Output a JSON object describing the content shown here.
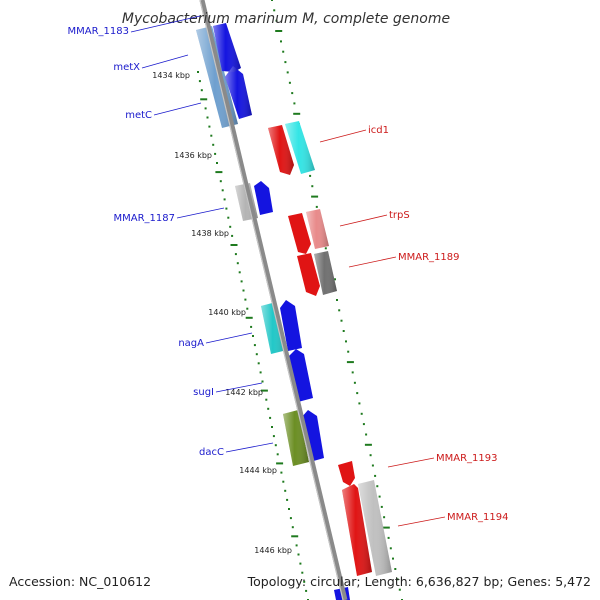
{
  "title": "Mycobacterium marinum M, complete genome",
  "footer": {
    "accession": "Accession: NC_010612",
    "topology": "Topology: circular; Length: 6,636,827 bp; Genes: 5,472"
  },
  "colors": {
    "backbone": "#8a8a8a",
    "tick_mark": "#1e7a1e",
    "forward_label": "#1a1acc",
    "reverse_label": "#cc1a1a"
  },
  "tick_labels": [
    "1434 kbp",
    "1436 kbp",
    "1438 kbp",
    "1440 kbp",
    "1442 kbp",
    "1444 kbp",
    "1446 kbp"
  ],
  "genes": [
    {
      "label": "MMAR_1183",
      "strand": "forward",
      "color": "#4f7fb0"
    },
    {
      "label": "metX",
      "strand": "forward",
      "color": "#1414e0"
    },
    {
      "label": "metC",
      "strand": "forward",
      "color": "#1414e0"
    },
    {
      "label": "icd1",
      "strand": "reverse",
      "color": "#e01414"
    },
    {
      "label": "MMAR_1187",
      "strand": "forward",
      "color": "#1414e0"
    },
    {
      "label": "trpS",
      "strand": "reverse",
      "color": "#e07b7b"
    },
    {
      "label": "MMAR_1189",
      "strand": "reverse",
      "color": "#6e6e6e"
    },
    {
      "label": "nagA",
      "strand": "forward",
      "color": "#1414e0"
    },
    {
      "label": "sugI",
      "strand": "forward",
      "color": "#1414e0"
    },
    {
      "label": "dacC",
      "strand": "forward",
      "color": "#1414e0"
    },
    {
      "label": "MMAR_1193",
      "strand": "reverse",
      "color": "#e01414"
    },
    {
      "label": "MMAR_1194",
      "strand": "reverse",
      "color": "#e01414"
    }
  ]
}
